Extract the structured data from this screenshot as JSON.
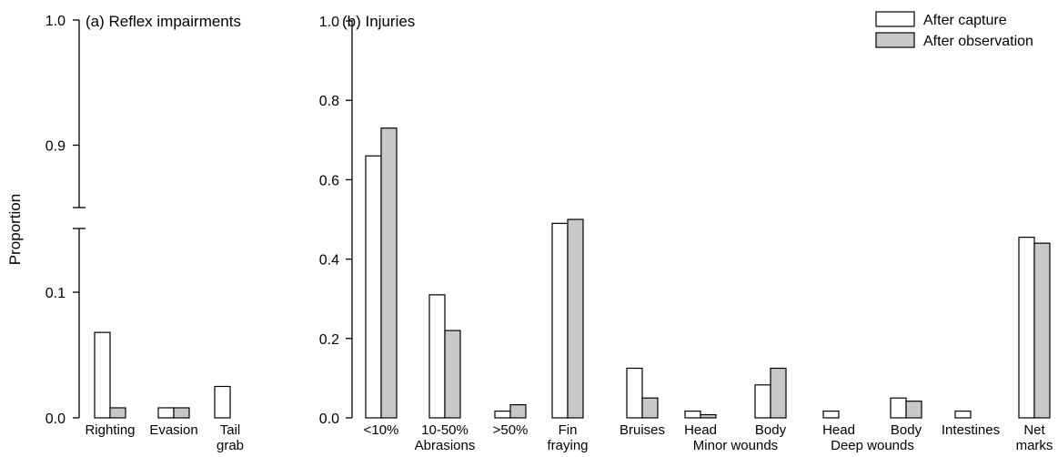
{
  "chart_data": [
    {
      "panel": "a",
      "type": "bar",
      "title": "(a) Reflex impairments",
      "ylabel": "Proportion",
      "y_axis_break": true,
      "ylim_lower": [
        0,
        0.15
      ],
      "ylim_upper": [
        0.85,
        1.0
      ],
      "yticks": [
        {
          "label": "0.0",
          "value": 0.0
        },
        {
          "label": "0.1",
          "value": 0.1
        },
        {
          "label": "0.9",
          "value": 0.9
        },
        {
          "label": "1.0",
          "value": 1.0
        }
      ],
      "categories": [
        {
          "lines": [
            "Righting"
          ]
        },
        {
          "lines": [
            "Evasion"
          ]
        },
        {
          "lines": [
            "Tail",
            "grab"
          ]
        }
      ],
      "series": [
        {
          "name": "After capture",
          "color": "#ffffff",
          "values": [
            0.068,
            0.008,
            0.025
          ]
        },
        {
          "name": "After observation",
          "color": "#c8c8c8",
          "values": [
            0.008,
            0.008,
            0.0
          ]
        }
      ]
    },
    {
      "panel": "b",
      "type": "bar",
      "title": "(b) Injuries",
      "ylim": [
        0,
        1.0
      ],
      "yticks": [
        {
          "label": "0.0",
          "value": 0.0
        },
        {
          "label": "0.2",
          "value": 0.2
        },
        {
          "label": "0.4",
          "value": 0.4
        },
        {
          "label": "0.6",
          "value": 0.6
        },
        {
          "label": "0.8",
          "value": 0.8
        },
        {
          "label": "1.0",
          "value": 1.0
        }
      ],
      "categories": [
        {
          "lines": [
            "<10%"
          ]
        },
        {
          "lines": [
            "10-50%"
          ]
        },
        {
          "lines": [
            ">50%"
          ]
        },
        {
          "lines": [
            "Fin",
            "fraying"
          ]
        },
        {
          "lines": [
            "Bruises"
          ]
        },
        {
          "lines": [
            "Head"
          ]
        },
        {
          "lines": [
            "Body"
          ]
        },
        {
          "lines": [
            "Head"
          ]
        },
        {
          "lines": [
            "Body"
          ]
        },
        {
          "lines": [
            "Intestines"
          ]
        },
        {
          "lines": [
            "Net",
            "marks"
          ]
        }
      ],
      "groups": [
        {
          "label": "Abrasions",
          "from": 0,
          "to": 2,
          "anchor": 1
        },
        {
          "label": "Minor wounds",
          "from": 5,
          "to": 6
        },
        {
          "label": "Deep wounds",
          "from": 7,
          "to": 8
        }
      ],
      "series": [
        {
          "name": "After capture",
          "color": "#ffffff",
          "values": [
            0.66,
            0.31,
            0.017,
            0.49,
            0.125,
            0.017,
            0.083,
            0.017,
            0.05,
            0.017,
            0.455
          ]
        },
        {
          "name": "After observation",
          "color": "#c8c8c8",
          "values": [
            0.73,
            0.22,
            0.033,
            0.5,
            0.05,
            0.008,
            0.125,
            0.0,
            0.042,
            0.0,
            0.44
          ]
        }
      ],
      "legend": {
        "position": "top-right",
        "entries": [
          "After capture",
          "After observation"
        ]
      }
    }
  ]
}
